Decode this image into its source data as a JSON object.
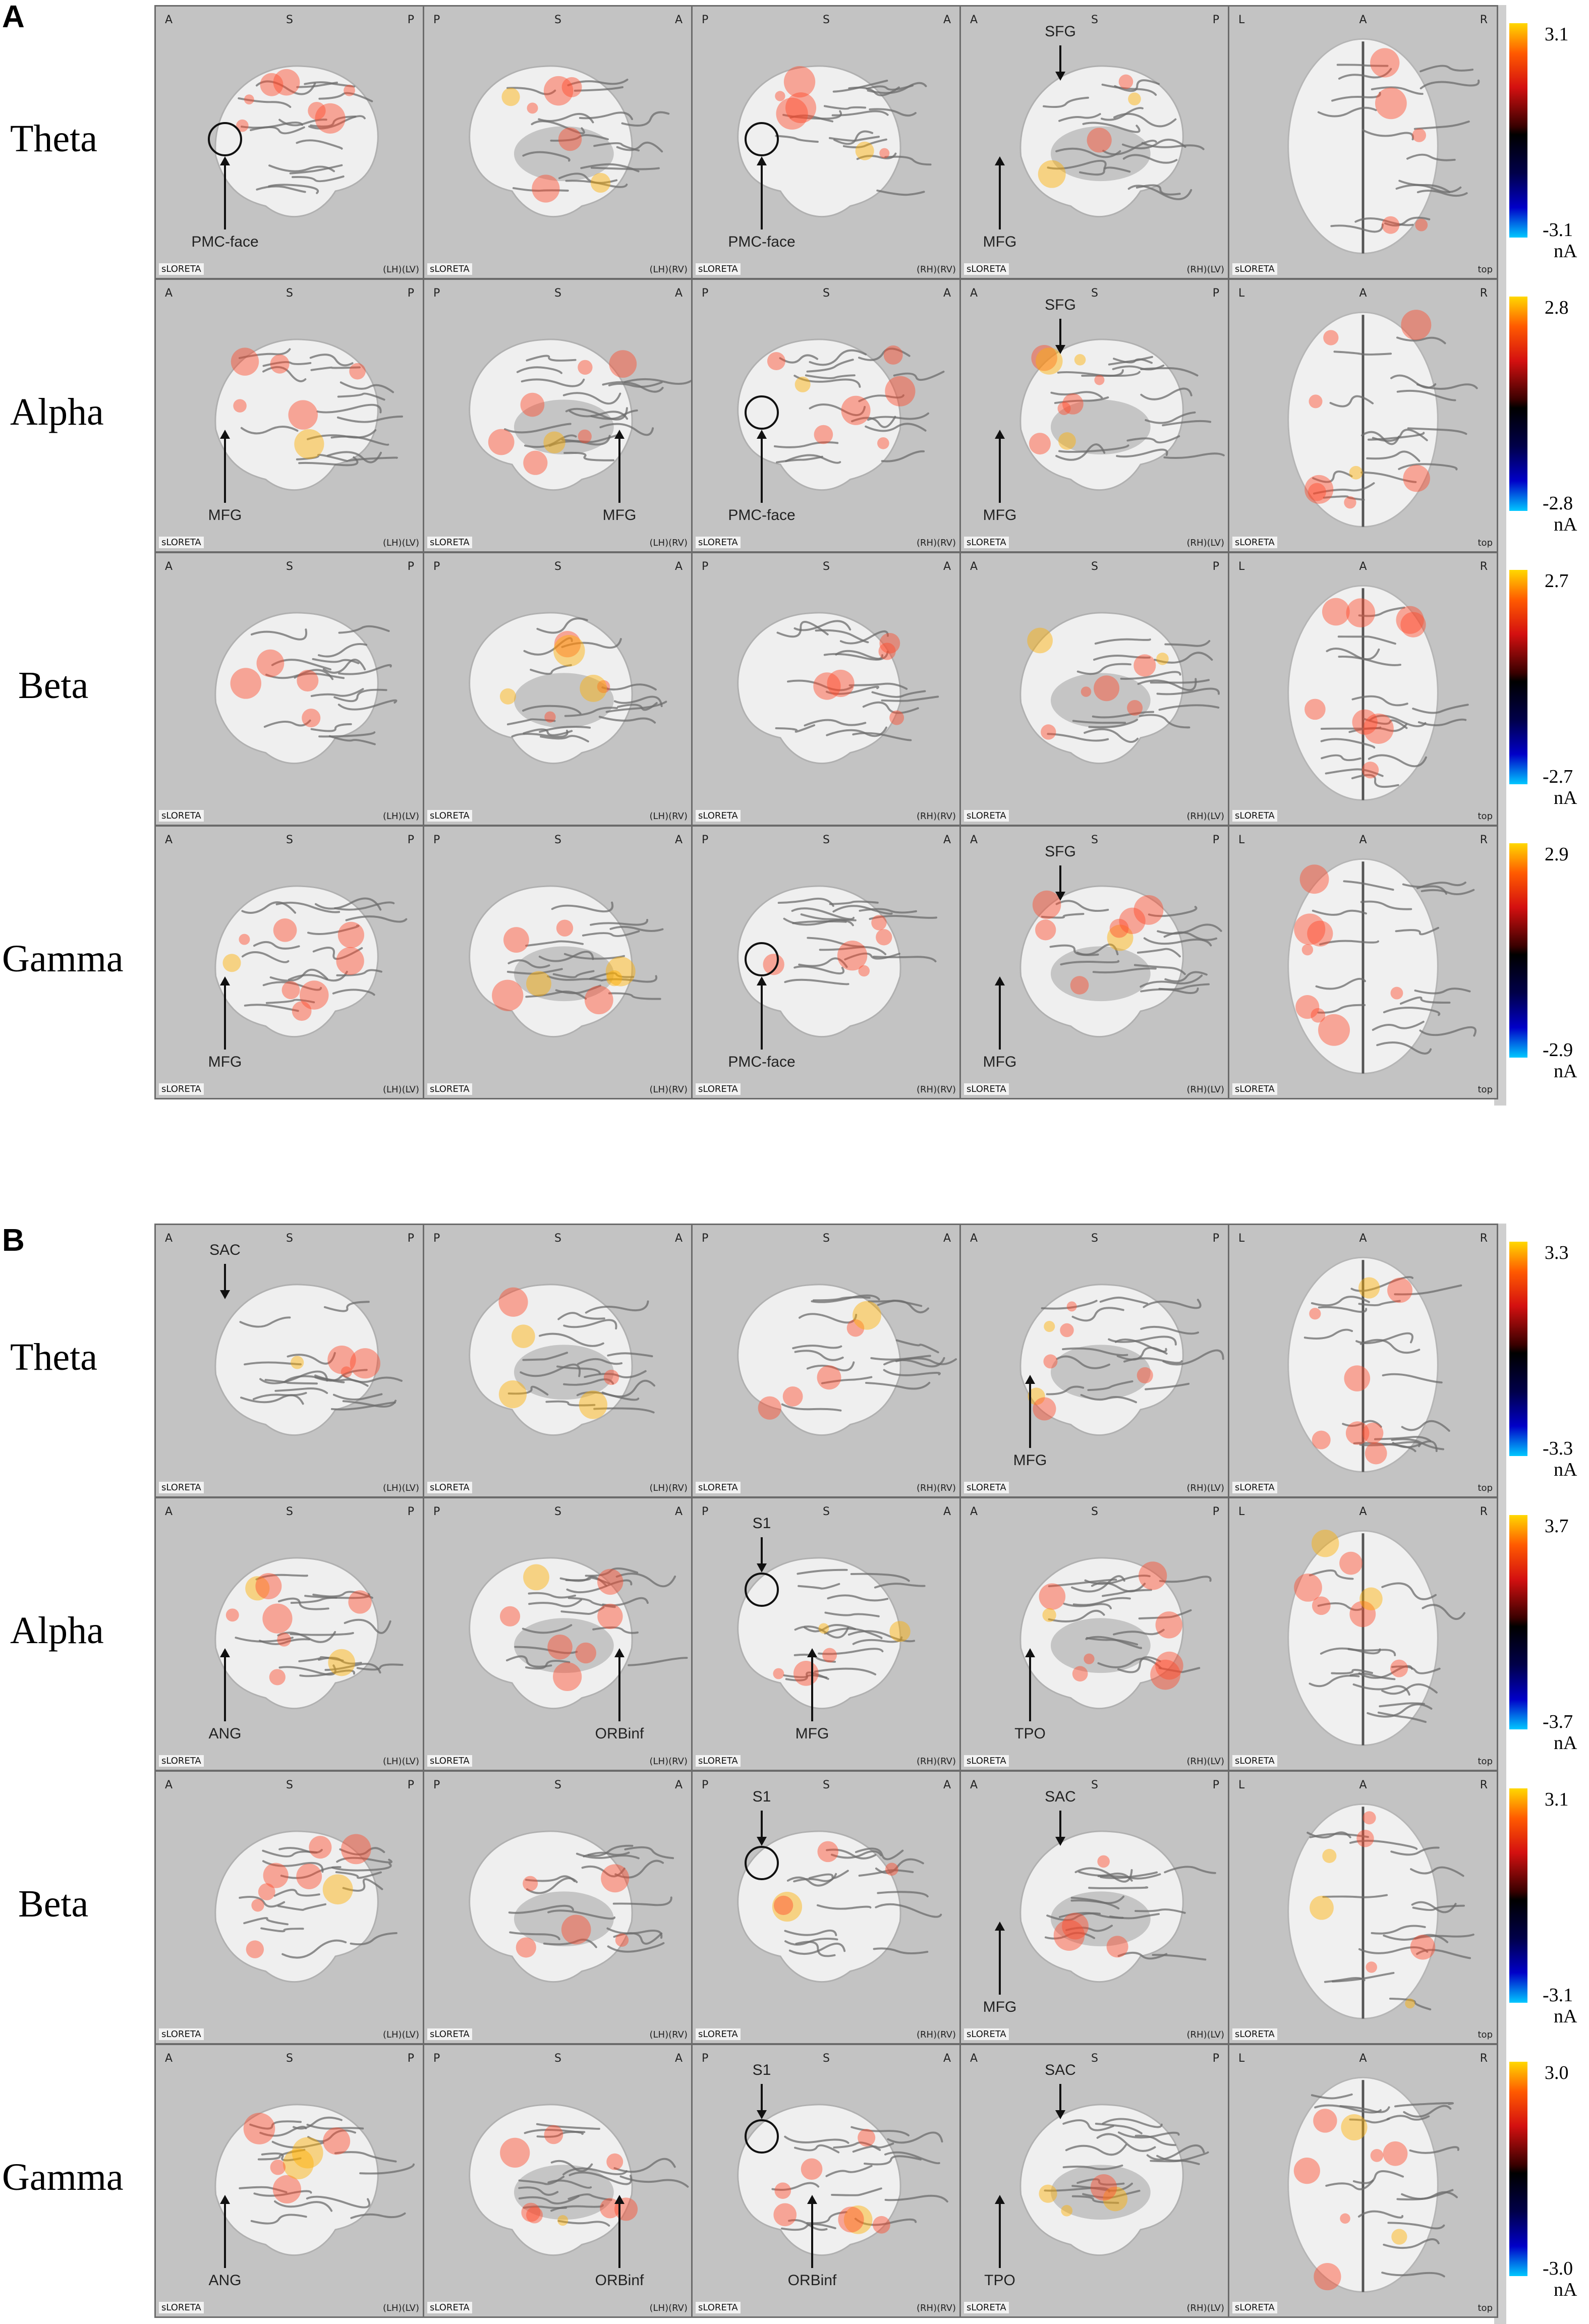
{
  "panels": [
    {
      "letter": "A",
      "rows": [
        {
          "band": "Theta",
          "max": "3.1",
          "min": "-3.1",
          "unit": "nA"
        },
        {
          "band": "Alpha",
          "max": "2.8",
          "min": "-2.8",
          "unit": "nA"
        },
        {
          "band": "Beta",
          "max": "2.7",
          "min": "-2.7",
          "unit": "nA"
        },
        {
          "band": "Gamma",
          "max": "2.9",
          "min": "-2.9",
          "unit": "nA"
        }
      ]
    },
    {
      "letter": "B",
      "rows": [
        {
          "band": "Theta",
          "max": "3.3",
          "min": "-3.3",
          "unit": "nA"
        },
        {
          "band": "Alpha",
          "max": "3.7",
          "min": "-3.7",
          "unit": "nA"
        },
        {
          "band": "Beta",
          "max": "3.1",
          "min": "-3.1",
          "unit": "nA"
        },
        {
          "band": "Gamma",
          "max": "3.0",
          "min": "-3.0",
          "unit": "nA"
        }
      ]
    }
  ],
  "views": [
    {
      "orient": [
        "A",
        "S",
        "P"
      ],
      "footer": "(LH)(LV)",
      "type": "lateral-left"
    },
    {
      "orient": [
        "P",
        "S",
        "A"
      ],
      "footer": "(LH)(RV)",
      "type": "medial-left"
    },
    {
      "orient": [
        "P",
        "S",
        "A"
      ],
      "footer": "(RH)(RV)",
      "type": "lateral-right"
    },
    {
      "orient": [
        "A",
        "S",
        "P"
      ],
      "footer": "(RH)(LV)",
      "type": "medial-right"
    },
    {
      "orient": [
        "L",
        "A",
        "R"
      ],
      "footer": "top",
      "type": "top"
    }
  ],
  "software_tag": "sLORETA",
  "annotations": {
    "A": [
      {
        "row": 0,
        "col": 0,
        "label": "PMC-face",
        "dir": "up",
        "circle": true
      },
      {
        "row": 0,
        "col": 2,
        "label": "PMC-face",
        "dir": "up",
        "circle": true
      },
      {
        "row": 0,
        "col": 3,
        "label": "SFG",
        "dir": "down"
      },
      {
        "row": 0,
        "col": 3,
        "label": "MFG",
        "dir": "up"
      },
      {
        "row": 1,
        "col": 0,
        "label": "MFG",
        "dir": "up"
      },
      {
        "row": 1,
        "col": 1,
        "label": "MFG",
        "dir": "up"
      },
      {
        "row": 1,
        "col": 2,
        "label": "PMC-face",
        "dir": "up",
        "circle": true
      },
      {
        "row": 1,
        "col": 3,
        "label": "SFG",
        "dir": "down"
      },
      {
        "row": 1,
        "col": 3,
        "label": "MFG",
        "dir": "up"
      },
      {
        "row": 3,
        "col": 0,
        "label": "MFG",
        "dir": "up"
      },
      {
        "row": 3,
        "col": 2,
        "label": "PMC-face",
        "dir": "up",
        "circle": true
      },
      {
        "row": 3,
        "col": 3,
        "label": "SFG",
        "dir": "down"
      },
      {
        "row": 3,
        "col": 3,
        "label": "MFG",
        "dir": "up"
      }
    ],
    "B": [
      {
        "row": 0,
        "col": 0,
        "label": "SAC",
        "dir": "down"
      },
      {
        "row": 0,
        "col": 3,
        "label": "MFG",
        "dir": "up"
      },
      {
        "row": 1,
        "col": 0,
        "label": "ANG",
        "dir": "up"
      },
      {
        "row": 1,
        "col": 1,
        "label": "ORBinf",
        "dir": "up"
      },
      {
        "row": 1,
        "col": 2,
        "label": "S1",
        "dir": "down",
        "circle": true
      },
      {
        "row": 1,
        "col": 2,
        "label": "MFG",
        "dir": "up"
      },
      {
        "row": 1,
        "col": 3,
        "label": "TPO",
        "dir": "up"
      },
      {
        "row": 2,
        "col": 2,
        "label": "S1",
        "dir": "down",
        "circle": true
      },
      {
        "row": 2,
        "col": 3,
        "label": "SAC",
        "dir": "down"
      },
      {
        "row": 2,
        "col": 3,
        "label": "MFG",
        "dir": "up"
      },
      {
        "row": 3,
        "col": 0,
        "label": "ANG",
        "dir": "up"
      },
      {
        "row": 3,
        "col": 1,
        "label": "ORBinf",
        "dir": "up"
      },
      {
        "row": 3,
        "col": 2,
        "label": "S1",
        "dir": "down",
        "circle": true
      },
      {
        "row": 3,
        "col": 2,
        "label": "ORBinf",
        "dir": "up"
      },
      {
        "row": 3,
        "col": 3,
        "label": "SAC",
        "dir": "down"
      },
      {
        "row": 3,
        "col": 3,
        "label": "TPO",
        "dir": "up"
      }
    ]
  },
  "colors": {
    "cell_bg": "#c3c3c3",
    "border": "#6b6b6b",
    "activation": "#ff4a2a",
    "hot": "#ffb000"
  }
}
